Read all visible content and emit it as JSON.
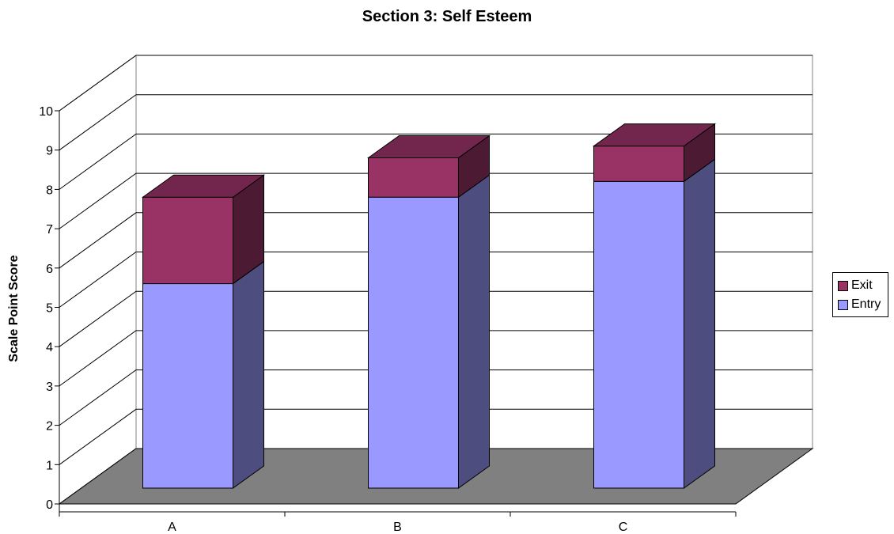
{
  "chart_data": {
    "type": "bar",
    "stacked": true,
    "three_d": true,
    "title": "Section 3: Self Esteem",
    "xlabel": "",
    "ylabel": "Scale Point Score",
    "ylim": [
      0,
      10
    ],
    "yticks": [
      0,
      1,
      2,
      3,
      4,
      5,
      6,
      7,
      8,
      9,
      10
    ],
    "categories": [
      "A",
      "B",
      "C"
    ],
    "series": [
      {
        "name": "Entry",
        "values": [
          5.2,
          7.4,
          7.8
        ],
        "color": "#9999FF"
      },
      {
        "name": "Exit",
        "values": [
          2.2,
          1.0,
          0.9
        ],
        "color": "#993366"
      }
    ],
    "grid": true,
    "legend": "right",
    "floor_color": "#808080"
  }
}
